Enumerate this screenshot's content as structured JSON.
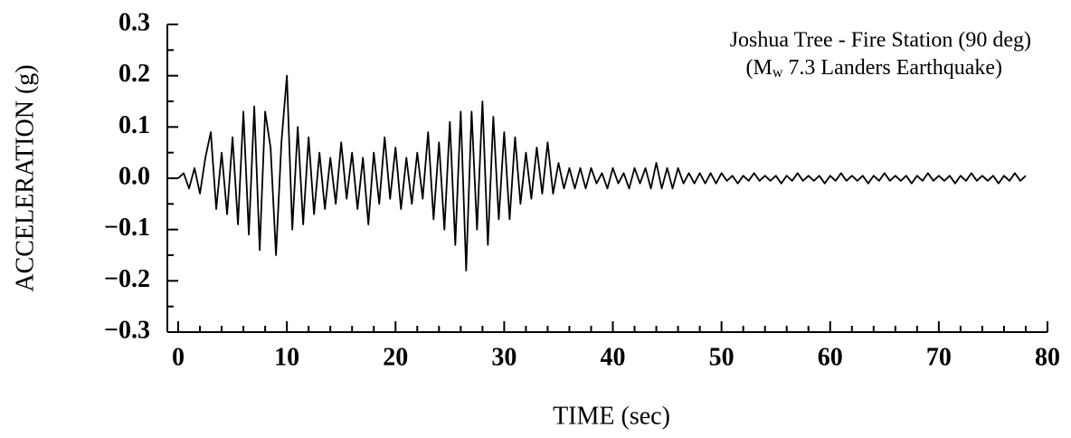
{
  "chart_data": {
    "type": "line",
    "xlabel": "TIME  (sec)",
    "ylabel": "ACCELERATION  (g)",
    "annotation": {
      "line1": "Joshua Tree - Fire Station (90 deg)",
      "line2": [
        "(M",
        "w",
        " 7.3 Landers Earthquake)"
      ]
    },
    "xlim": [
      -1,
      80
    ],
    "xticks": [
      0,
      10,
      20,
      30,
      40,
      50,
      60,
      70,
      80
    ],
    "xminorticks": [
      2,
      4,
      6,
      8,
      12,
      14,
      16,
      18,
      22,
      24,
      26,
      28,
      32,
      34,
      36,
      38,
      42,
      44,
      46,
      48,
      52,
      54,
      56,
      58,
      62,
      64,
      66,
      68,
      72,
      74,
      76,
      78
    ],
    "ylim": [
      -0.3,
      0.3
    ],
    "yticks": [
      0.3,
      0.2,
      0.1,
      {
        "value": 0,
        "label": "0.0"
      },
      {
        "value": -0.1,
        "label": "−0.1"
      },
      {
        "value": -0.2,
        "label": "−0.2"
      },
      {
        "value": -0.3,
        "label": "−0.3"
      }
    ],
    "yminorticks": [
      0.25,
      0.15,
      0.05,
      -0.05,
      -0.15,
      -0.25
    ],
    "color": "#000000",
    "x": [
      0,
      0.5,
      1,
      1.5,
      2,
      2.5,
      3,
      3.5,
      4,
      4.5,
      5,
      5.5,
      6,
      6.5,
      7,
      7.5,
      8,
      8.5,
      9,
      9.5,
      10,
      10.5,
      11,
      11.5,
      12,
      12.5,
      13,
      13.5,
      14,
      14.5,
      15,
      15.5,
      16,
      16.5,
      17,
      17.5,
      18,
      18.5,
      19,
      19.5,
      20,
      20.5,
      21,
      21.5,
      22,
      22.5,
      23,
      23.5,
      24,
      24.5,
      25,
      25.5,
      26,
      26.5,
      27,
      27.5,
      28,
      28.5,
      29,
      29.5,
      30,
      30.5,
      31,
      31.5,
      32,
      32.5,
      33,
      33.5,
      34,
      34.5,
      35,
      35.5,
      36,
      36.5,
      37,
      37.5,
      38,
      38.5,
      39,
      39.5,
      40,
      40.5,
      41,
      41.5,
      42,
      42.5,
      43,
      43.5,
      44,
      44.5,
      45,
      45.5,
      46,
      46.5,
      47,
      47.5,
      48,
      48.5,
      49,
      49.5,
      50,
      50.5,
      51,
      51.5,
      52,
      52.5,
      53,
      53.5,
      54,
      54.5,
      55,
      55.5,
      56,
      56.5,
      57,
      57.5,
      58,
      58.5,
      59,
      59.5,
      60,
      60.5,
      61,
      61.5,
      62,
      62.5,
      63,
      63.5,
      64,
      64.5,
      65,
      65.5,
      66,
      66.5,
      67,
      67.5,
      68,
      68.5,
      69,
      69.5,
      70,
      70.5,
      71,
      71.5,
      72,
      72.5,
      73,
      73.5,
      74,
      74.5,
      75,
      75.5,
      76,
      76.5,
      77,
      77.5,
      78
    ],
    "values": [
      0,
      0.01,
      -0.02,
      0.02,
      -0.03,
      0.04,
      0.09,
      -0.06,
      0.05,
      -0.07,
      0.08,
      -0.09,
      0.13,
      -0.11,
      0.14,
      -0.14,
      0.13,
      0.06,
      -0.15,
      0.07,
      0.2,
      -0.1,
      0.1,
      -0.09,
      0.08,
      -0.07,
      0.05,
      -0.06,
      0.04,
      -0.05,
      0.07,
      -0.04,
      0.05,
      -0.06,
      0.04,
      -0.09,
      0.05,
      -0.05,
      0.08,
      -0.04,
      0.06,
      -0.06,
      0.04,
      -0.05,
      0.05,
      -0.04,
      0.09,
      -0.08,
      0.07,
      -0.1,
      0.11,
      -0.13,
      0.13,
      -0.18,
      0.13,
      -0.1,
      0.15,
      -0.13,
      0.12,
      -0.08,
      0.09,
      -0.08,
      0.08,
      -0.05,
      0.05,
      -0.04,
      0.06,
      -0.03,
      0.07,
      -0.03,
      0.03,
      -0.02,
      0.02,
      -0.02,
      0.02,
      -0.02,
      0.02,
      -0.01,
      0.01,
      -0.02,
      0.02,
      -0.01,
      0.01,
      -0.02,
      0.02,
      -0.01,
      0.02,
      -0.02,
      0.03,
      -0.02,
      0.02,
      -0.02,
      0.02,
      -0.01,
      0.01,
      -0.01,
      0.01,
      -0.01,
      0.01,
      -0.01,
      0.01,
      -0.005,
      0.005,
      -0.01,
      0.005,
      -0.005,
      0.01,
      -0.005,
      0.005,
      -0.005,
      0.005,
      -0.01,
      0.005,
      -0.005,
      0.01,
      -0.005,
      0.005,
      -0.005,
      0.005,
      -0.01,
      0.005,
      -0.005,
      0.01,
      -0.005,
      0.005,
      -0.005,
      0.005,
      -0.01,
      0.005,
      -0.005,
      0.01,
      -0.005,
      0.005,
      -0.005,
      0.005,
      -0.01,
      0.005,
      -0.005,
      0.01,
      -0.005,
      0.005,
      -0.005,
      0.005,
      -0.01,
      0.005,
      -0.005,
      0.01,
      -0.005,
      0.005,
      -0.005,
      0.005,
      -0.01,
      0.005,
      -0.005,
      0.01,
      -0.005,
      0.005
    ]
  }
}
